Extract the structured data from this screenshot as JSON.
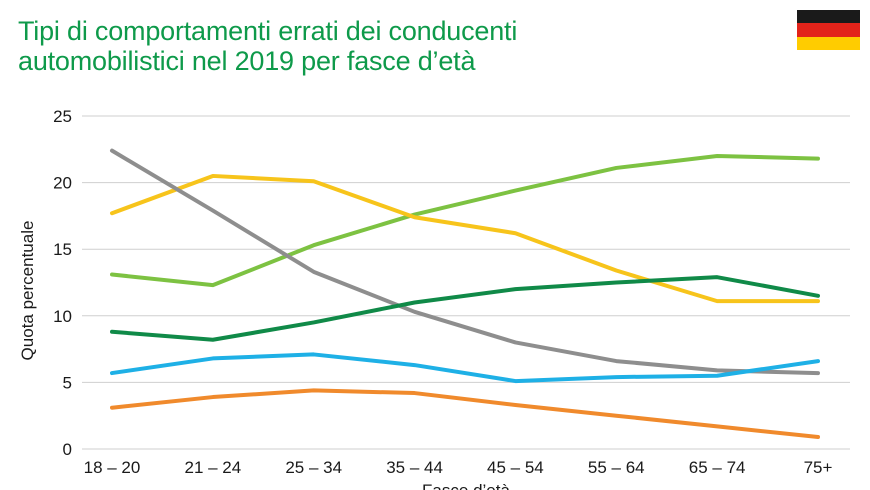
{
  "title_lines": [
    "Tipi di comportamenti errati dei conducenti",
    "automobilistici nel 2019 per fasce d’età"
  ],
  "flag": {
    "icon": "germany-flag-icon",
    "colors": [
      "#1a1a1a",
      "#e2231a",
      "#ffcc00"
    ]
  },
  "chart_data": {
    "type": "line",
    "title": "Tipi di comportamenti errati dei conducenti automobilistici nel 2019 per fasce d’età",
    "xlabel": "Fasce d’età",
    "ylabel": "Quota percentuale",
    "ylim": [
      0,
      25
    ],
    "yticks": [
      0,
      5,
      10,
      15,
      20,
      25
    ],
    "grid": true,
    "categories": [
      "18 – 20",
      "21 – 24",
      "25 – 34",
      "35 – 44",
      "45 – 54",
      "55 – 64",
      "65 – 74",
      "75+"
    ],
    "series": [
      {
        "color": "#7dc242",
        "values": [
          13.1,
          12.3,
          15.3,
          17.6,
          19.4,
          21.1,
          22.0,
          21.8
        ]
      },
      {
        "color": "#f7c41b",
        "values": [
          17.7,
          20.5,
          20.1,
          17.4,
          16.2,
          13.4,
          11.1,
          11.1
        ]
      },
      {
        "color": "#8e8e8e",
        "values": [
          22.4,
          17.9,
          13.3,
          10.3,
          8.0,
          6.6,
          5.9,
          5.7
        ]
      },
      {
        "color": "#108a48",
        "values": [
          8.8,
          8.2,
          9.5,
          11.0,
          12.0,
          12.5,
          12.9,
          11.5
        ]
      },
      {
        "color": "#1eb0e6",
        "values": [
          5.7,
          6.8,
          7.1,
          6.3,
          5.1,
          5.4,
          5.5,
          6.6
        ]
      },
      {
        "color": "#f08a2c",
        "values": [
          3.1,
          3.9,
          4.4,
          4.2,
          3.3,
          2.5,
          1.7,
          0.9
        ]
      }
    ]
  }
}
